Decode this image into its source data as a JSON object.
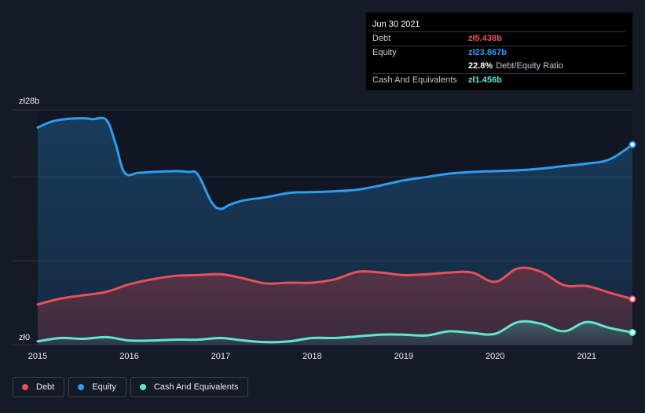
{
  "chart_data": {
    "type": "area",
    "ylim": [
      0,
      28
    ],
    "y_tick_labels": [
      "zł28b",
      "zł0"
    ],
    "x_tick_labels": [
      "2015",
      "2016",
      "2017",
      "2018",
      "2019",
      "2020",
      "2021"
    ],
    "x_tick_years": [
      2015,
      2016,
      2017,
      2018,
      2019,
      2020,
      2021
    ],
    "grid": true,
    "legend_position": "bottom-left",
    "series": [
      {
        "name": "Equity",
        "color": "#2e9cf0",
        "x": [
          2015.0,
          2015.15,
          2015.3,
          2015.5,
          2015.6,
          2015.75,
          2015.85,
          2015.95,
          2016.1,
          2016.25,
          2016.5,
          2016.65,
          2016.75,
          2016.9,
          2017.0,
          2017.1,
          2017.25,
          2017.5,
          2017.75,
          2018.0,
          2018.25,
          2018.5,
          2018.75,
          2019.0,
          2019.25,
          2019.5,
          2019.75,
          2020.0,
          2020.25,
          2020.5,
          2020.75,
          2021.0,
          2021.25,
          2021.5
        ],
        "values": [
          25.9,
          26.6,
          26.9,
          27.0,
          26.9,
          26.8,
          24.0,
          20.5,
          20.5,
          20.6,
          20.7,
          20.6,
          20.3,
          17.0,
          16.2,
          16.7,
          17.2,
          17.6,
          18.1,
          18.2,
          18.3,
          18.5,
          19.0,
          19.6,
          20.0,
          20.4,
          20.6,
          20.7,
          20.8,
          21.0,
          21.3,
          21.6,
          22.1,
          23.867
        ]
      },
      {
        "name": "Debt",
        "color": "#e8505b",
        "x": [
          2015.0,
          2015.25,
          2015.5,
          2015.75,
          2016.0,
          2016.25,
          2016.5,
          2016.75,
          2017.0,
          2017.25,
          2017.5,
          2017.75,
          2018.0,
          2018.25,
          2018.5,
          2018.75,
          2019.0,
          2019.25,
          2019.5,
          2019.75,
          2020.0,
          2020.25,
          2020.5,
          2020.75,
          2021.0,
          2021.25,
          2021.5
        ],
        "values": [
          4.8,
          5.5,
          5.9,
          6.3,
          7.2,
          7.8,
          8.2,
          8.3,
          8.4,
          7.9,
          7.3,
          7.4,
          7.4,
          7.8,
          8.7,
          8.6,
          8.3,
          8.4,
          8.6,
          8.6,
          7.5,
          9.1,
          8.7,
          7.1,
          7.0,
          6.2,
          5.438
        ]
      },
      {
        "name": "Cash And Equivalents",
        "color": "#5ee6d2",
        "x": [
          2015.0,
          2015.25,
          2015.5,
          2015.75,
          2016.0,
          2016.25,
          2016.5,
          2016.75,
          2017.0,
          2017.25,
          2017.5,
          2017.75,
          2018.0,
          2018.25,
          2018.5,
          2018.75,
          2019.0,
          2019.25,
          2019.5,
          2019.75,
          2020.0,
          2020.25,
          2020.5,
          2020.75,
          2021.0,
          2021.25,
          2021.5
        ],
        "values": [
          0.4,
          0.8,
          0.7,
          0.9,
          0.5,
          0.5,
          0.6,
          0.6,
          0.8,
          0.5,
          0.3,
          0.4,
          0.8,
          0.8,
          1.0,
          1.2,
          1.2,
          1.1,
          1.6,
          1.4,
          1.3,
          2.7,
          2.5,
          1.6,
          2.7,
          2.0,
          1.456
        ]
      }
    ]
  },
  "tooltip": {
    "date": "Jun 30 2021",
    "rows": [
      {
        "name": "Debt",
        "value": "zł5.438b",
        "color": "#e8505b",
        "sub": ""
      },
      {
        "name": "Equity",
        "value": "zł23.867b",
        "color": "#2e9cf0",
        "sub": ""
      },
      {
        "name": "",
        "value": "22.8%",
        "color": "#ffffff",
        "sub": "Debt/Equity Ratio"
      },
      {
        "name": "Cash And Equivalents",
        "value": "zł1.456b",
        "color": "#5ee6d2",
        "sub": ""
      }
    ]
  },
  "legend": [
    {
      "label": "Debt",
      "color": "#e8505b"
    },
    {
      "label": "Equity",
      "color": "#2e9cf0"
    },
    {
      "label": "Cash And Equivalents",
      "color": "#5ee6d2"
    }
  ]
}
